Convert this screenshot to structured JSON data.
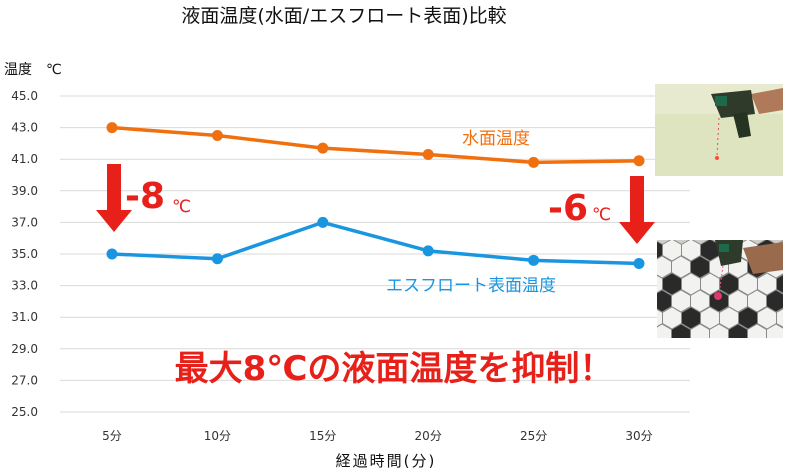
{
  "chart_data": {
    "type": "line",
    "title": "液面温度(水面/エスフロート表面)比較",
    "ylabel": "温度　℃",
    "xlabel": "経過時間(分)",
    "categories": [
      "5分",
      "10分",
      "15分",
      "20分",
      "25分",
      "30分"
    ],
    "yticks": [
      "25.0",
      "27.0",
      "29.0",
      "31.0",
      "33.0",
      "35.0",
      "37.0",
      "39.0",
      "41.0",
      "43.0",
      "45.0"
    ],
    "ylim": [
      25,
      45
    ],
    "grid": true,
    "series": [
      {
        "name": "水面温度",
        "color": "#f07010",
        "values": [
          43.0,
          42.5,
          41.7,
          41.3,
          40.8,
          40.9
        ]
      },
      {
        "name": "エスフロート表面温度",
        "color": "#1a96e0",
        "values": [
          35.0,
          34.7,
          37.0,
          35.2,
          34.6,
          34.4
        ]
      }
    ],
    "annotations": {
      "left_diff": {
        "value": "-8",
        "unit": "℃"
      },
      "right_diff": {
        "value": "-6",
        "unit": "℃"
      },
      "headline": "最大8℃の液面温度を抑制！"
    },
    "annotation_color": "#e8201a"
  },
  "images": {
    "top": "thermometer-on-water-photo",
    "bottom": "thermometer-on-float-photo"
  }
}
